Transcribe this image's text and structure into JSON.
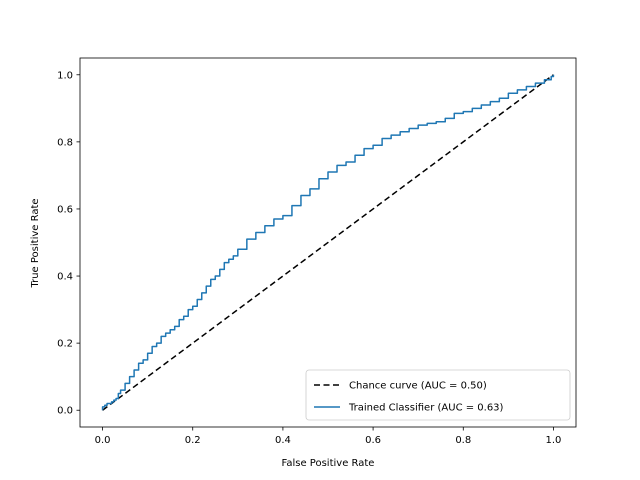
{
  "chart_data": {
    "type": "line",
    "title": "",
    "xlabel": "False Positive Rate",
    "ylabel": "True Positive Rate",
    "xlim": [
      -0.05,
      1.05
    ],
    "ylim": [
      -0.05,
      1.05
    ],
    "xticks": [
      "0.0",
      "0.2",
      "0.4",
      "0.6",
      "0.8",
      "1.0"
    ],
    "yticks": [
      "0.0",
      "0.2",
      "0.4",
      "0.6",
      "0.8",
      "1.0"
    ],
    "grid": false,
    "legend_position": "lower-right",
    "series": [
      {
        "name": "Chance curve (AUC = 0.50)",
        "color": "#000000",
        "style": "dashed",
        "x": [
          0.0,
          1.0
        ],
        "y": [
          0.0,
          1.0
        ]
      },
      {
        "name": "Trained Classifier (AUC = 0.63)",
        "color": "#1f77b4",
        "style": "solid-step",
        "x": [
          0.0,
          0.0,
          0.005,
          0.01,
          0.015,
          0.02,
          0.025,
          0.03,
          0.035,
          0.04,
          0.05,
          0.06,
          0.07,
          0.08,
          0.09,
          0.1,
          0.11,
          0.12,
          0.13,
          0.14,
          0.15,
          0.16,
          0.17,
          0.18,
          0.19,
          0.2,
          0.21,
          0.22,
          0.23,
          0.24,
          0.25,
          0.26,
          0.27,
          0.28,
          0.29,
          0.3,
          0.32,
          0.34,
          0.36,
          0.38,
          0.4,
          0.42,
          0.44,
          0.46,
          0.48,
          0.5,
          0.52,
          0.54,
          0.56,
          0.58,
          0.6,
          0.62,
          0.64,
          0.66,
          0.68,
          0.7,
          0.72,
          0.74,
          0.76,
          0.78,
          0.8,
          0.82,
          0.84,
          0.86,
          0.88,
          0.9,
          0.92,
          0.94,
          0.96,
          0.98,
          0.995,
          1.0
        ],
        "y": [
          0.0,
          0.01,
          0.015,
          0.02,
          0.02,
          0.025,
          0.03,
          0.035,
          0.05,
          0.06,
          0.08,
          0.1,
          0.12,
          0.14,
          0.15,
          0.17,
          0.19,
          0.2,
          0.22,
          0.23,
          0.24,
          0.25,
          0.27,
          0.28,
          0.3,
          0.31,
          0.33,
          0.35,
          0.37,
          0.39,
          0.4,
          0.42,
          0.44,
          0.45,
          0.46,
          0.48,
          0.51,
          0.53,
          0.55,
          0.57,
          0.58,
          0.61,
          0.64,
          0.66,
          0.69,
          0.71,
          0.73,
          0.74,
          0.76,
          0.78,
          0.79,
          0.81,
          0.82,
          0.83,
          0.84,
          0.85,
          0.855,
          0.86,
          0.87,
          0.885,
          0.89,
          0.9,
          0.91,
          0.92,
          0.93,
          0.945,
          0.955,
          0.965,
          0.975,
          0.985,
          0.995,
          1.0
        ]
      }
    ]
  }
}
